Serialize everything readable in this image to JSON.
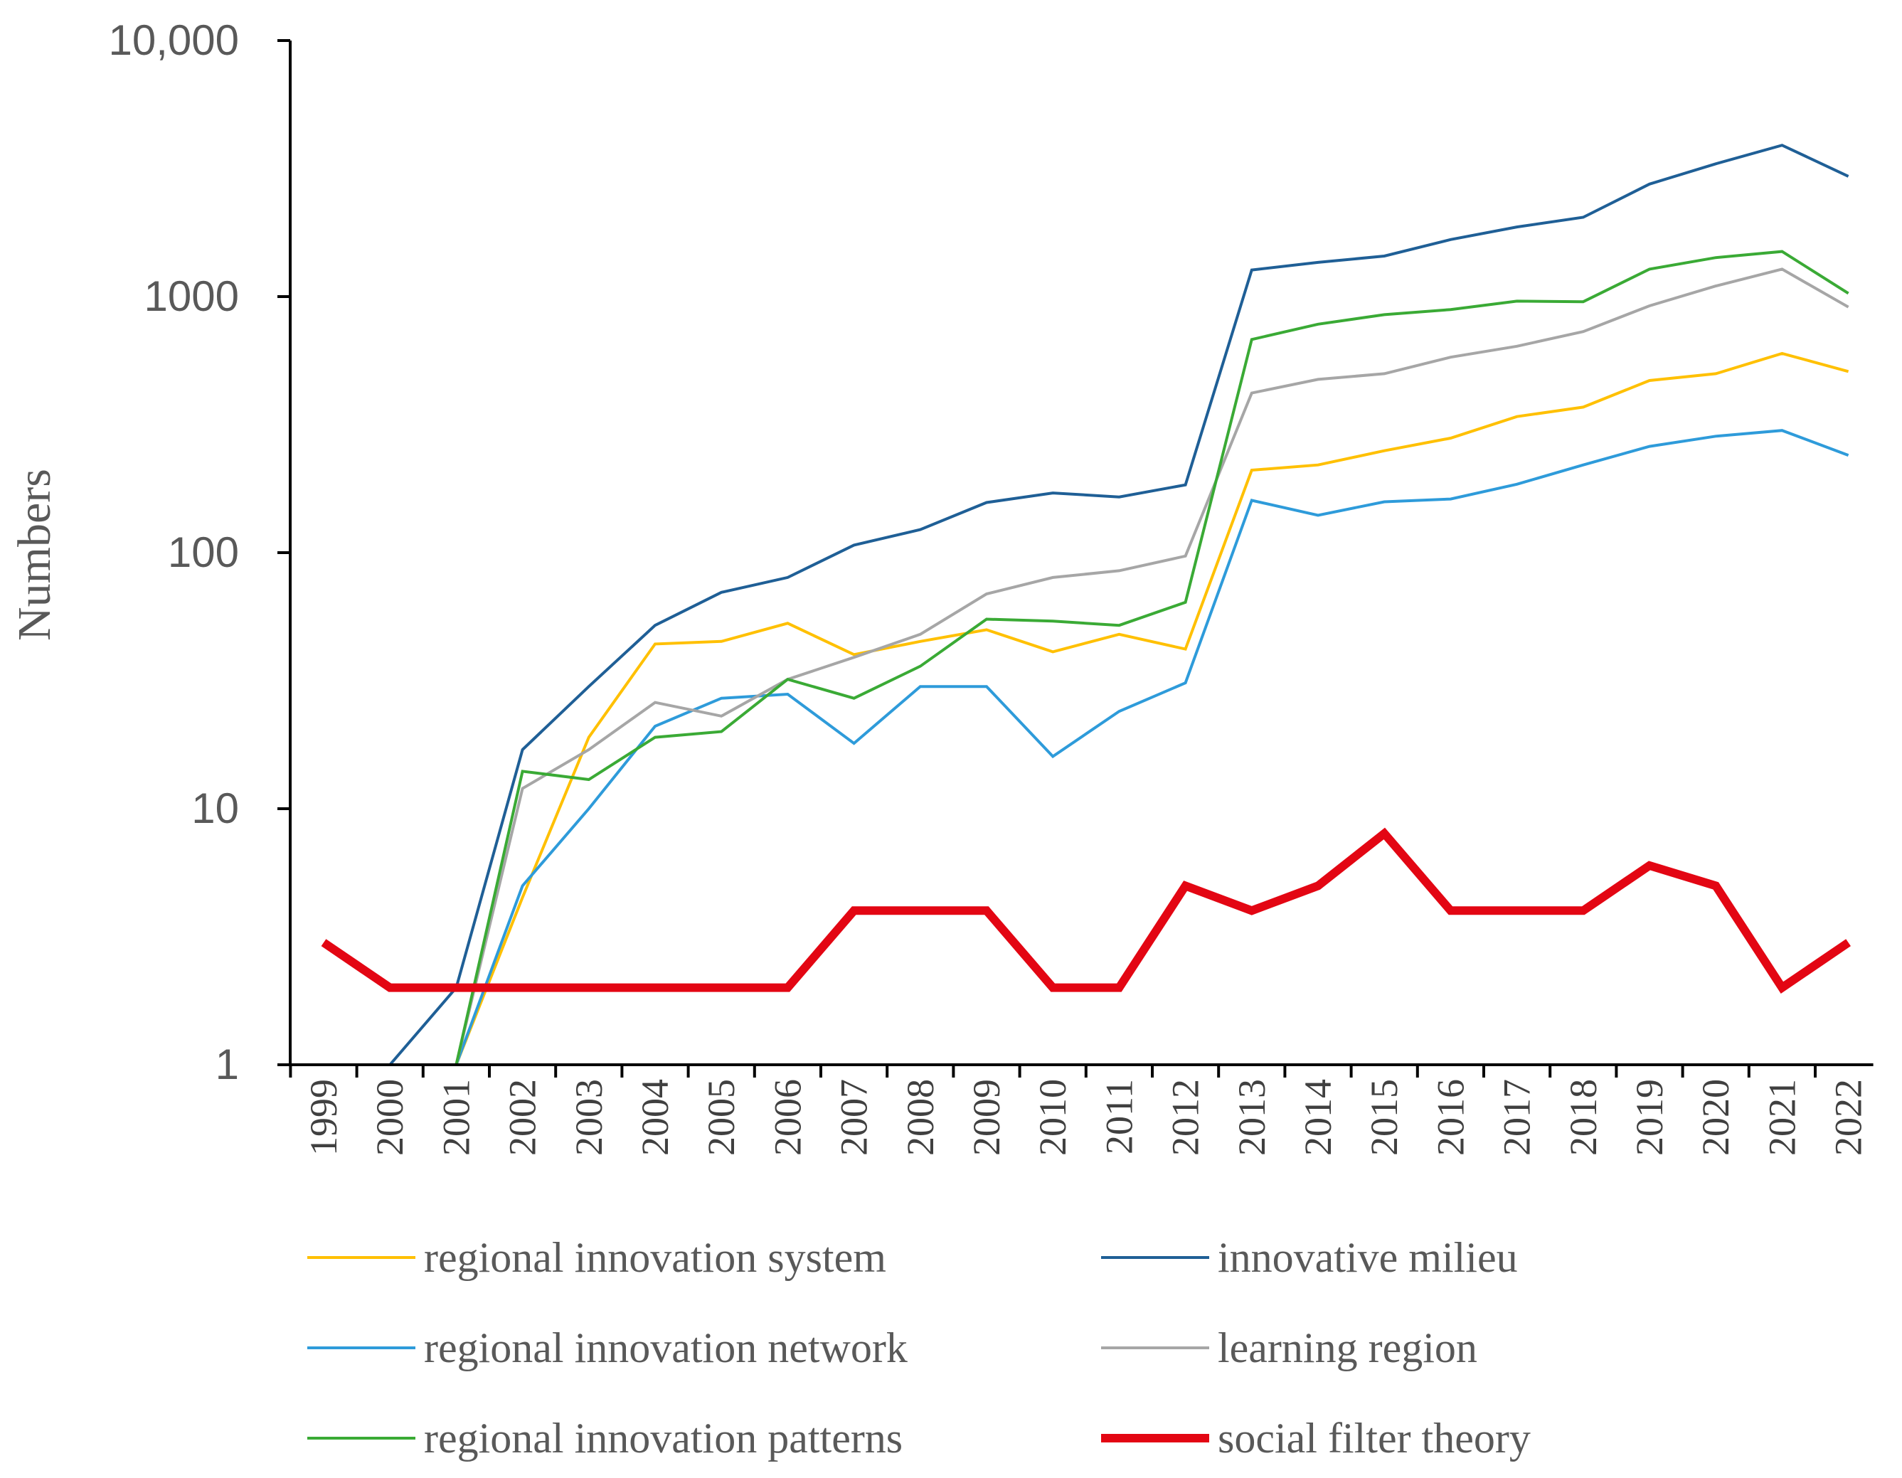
{
  "chart_data": {
    "type": "line",
    "title": "",
    "xlabel": "",
    "ylabel": "Numbers",
    "yscale": "log",
    "ylim": [
      1,
      10000
    ],
    "yticks": [
      1,
      10,
      100,
      1000,
      10000
    ],
    "ytick_labels": [
      "1",
      "10",
      "100",
      "1000",
      "10,000"
    ],
    "grid": false,
    "legend": "bottom",
    "x": [
      "1999",
      "2000",
      "2001",
      "2002",
      "2003",
      "2004",
      "2005",
      "2006",
      "2007",
      "2008",
      "2009",
      "2010",
      "2011",
      "2012",
      "2013",
      "2014",
      "2015",
      "2016",
      "2017",
      "2018",
      "2019",
      "2020",
      "2021",
      "2022"
    ],
    "series": [
      {
        "name": "regional innovation system",
        "color": "#FFC000",
        "width": 4,
        "values": [
          1,
          1,
          1,
          4.5,
          19,
          44,
          45,
          53,
          40,
          45,
          50,
          41,
          48,
          42,
          210,
          220,
          250,
          280,
          340,
          370,
          470,
          500,
          600,
          510
        ]
      },
      {
        "name": "innovative milieu",
        "color": "#1F5F96",
        "width": 4,
        "values": [
          1,
          1,
          2,
          17,
          30,
          52,
          70,
          80,
          107,
          123,
          157,
          171,
          165,
          184,
          1270,
          1360,
          1440,
          1670,
          1870,
          2040,
          2750,
          3300,
          3900,
          2950
        ]
      },
      {
        "name": "regional innovation network",
        "color": "#2E9BDA",
        "width": 4,
        "values": [
          1,
          1,
          1,
          5,
          10,
          21,
          27,
          28,
          18,
          30,
          30,
          16,
          24,
          31,
          160,
          140,
          158,
          162,
          185,
          220,
          260,
          285,
          300,
          240
        ]
      },
      {
        "name": "learning region",
        "color": "#A6A6A6",
        "width": 4,
        "values": [
          1,
          1,
          1,
          12,
          17,
          26,
          23,
          32,
          39,
          48,
          69,
          80,
          85,
          97,
          420,
          475,
          500,
          580,
          640,
          730,
          920,
          1100,
          1280,
          910
        ]
      },
      {
        "name": "regional innovation patterns",
        "color": "#3AAA35",
        "width": 4,
        "values": [
          1,
          1,
          1,
          14,
          13,
          19,
          20,
          32,
          27,
          36,
          55,
          54,
          52,
          64,
          680,
          780,
          850,
          890,
          960,
          955,
          1280,
          1420,
          1500,
          1030
        ]
      },
      {
        "name": "social filter theory",
        "color": "#E30613",
        "width": 12,
        "values": [
          3,
          2,
          2,
          2,
          2,
          2,
          2,
          2,
          4,
          4,
          4,
          2,
          2,
          5,
          4,
          5,
          8,
          4,
          4,
          4,
          6,
          5,
          2,
          3
        ]
      }
    ]
  }
}
